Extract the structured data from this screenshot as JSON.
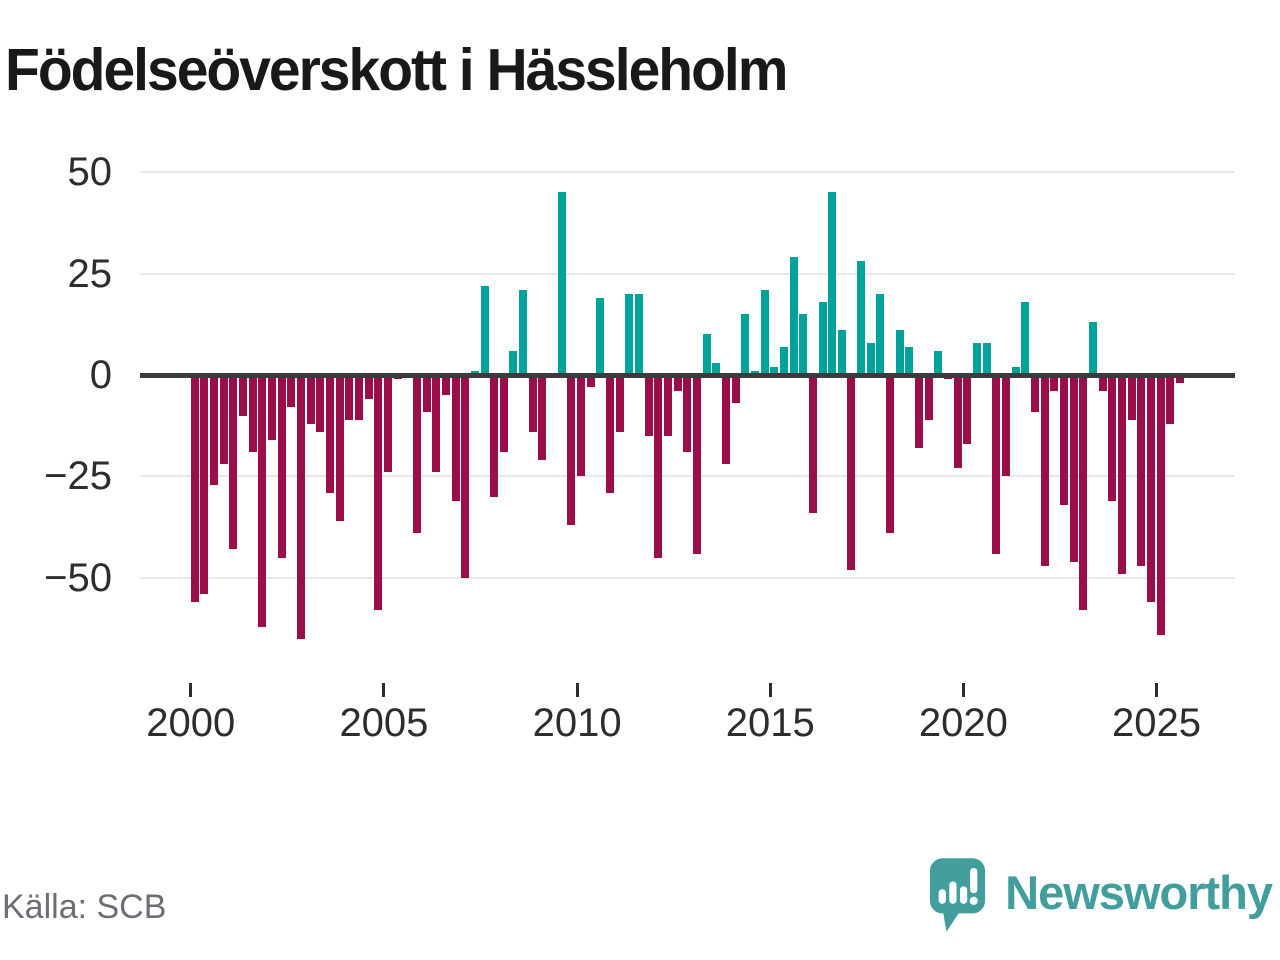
{
  "title": "Födelseöverskott i Hässleholm",
  "source": "Källa: SCB",
  "branding": {
    "wordmark": "Newsworthy",
    "icon": "newsworthy-speech-bubble-bar-chart-icon"
  },
  "colors": {
    "background": "#ffffff",
    "positive_bar": "#00a39a",
    "negative_bar": "#9b0e4a",
    "gridline": "#e8e8e8",
    "zero_line": "#3b3b3b",
    "axis_text": "#2d2d2d",
    "title_text": "#191919",
    "source_text": "#6d6d75",
    "brand_teal": "#419e9c"
  },
  "chart_data": {
    "type": "bar",
    "title": "Födelseöverskott i Hässleholm",
    "xlabel": "",
    "ylabel": "",
    "x_frequency": "quarterly",
    "x_start": "2000Q1",
    "x_end": "2025Q3",
    "grid": "horizontal",
    "legend": "none",
    "ylim": [
      -70,
      55
    ],
    "yticks": [
      {
        "value": 50,
        "label": "50"
      },
      {
        "value": 25,
        "label": "25"
      },
      {
        "value": 0,
        "label": "0"
      },
      {
        "value": -25,
        "label": "−25"
      },
      {
        "value": -50,
        "label": "−50"
      }
    ],
    "xticks": [
      {
        "year": 2000,
        "label": "2000"
      },
      {
        "year": 2005,
        "label": "2005"
      },
      {
        "year": 2010,
        "label": "2010"
      },
      {
        "year": 2015,
        "label": "2015"
      },
      {
        "year": 2020,
        "label": "2020"
      },
      {
        "year": 2025,
        "label": "2025"
      }
    ],
    "categories": [
      "2000Q1",
      "2000Q2",
      "2000Q3",
      "2000Q4",
      "2001Q1",
      "2001Q2",
      "2001Q3",
      "2001Q4",
      "2002Q1",
      "2002Q2",
      "2002Q3",
      "2002Q4",
      "2003Q1",
      "2003Q2",
      "2003Q3",
      "2003Q4",
      "2004Q1",
      "2004Q2",
      "2004Q3",
      "2004Q4",
      "2005Q1",
      "2005Q2",
      "2005Q3",
      "2005Q4",
      "2006Q1",
      "2006Q2",
      "2006Q3",
      "2006Q4",
      "2007Q1",
      "2007Q2",
      "2007Q3",
      "2007Q4",
      "2008Q1",
      "2008Q2",
      "2008Q3",
      "2008Q4",
      "2009Q1",
      "2009Q2",
      "2009Q3",
      "2009Q4",
      "2010Q1",
      "2010Q2",
      "2010Q3",
      "2010Q4",
      "2011Q1",
      "2011Q2",
      "2011Q3",
      "2011Q4",
      "2012Q1",
      "2012Q2",
      "2012Q3",
      "2012Q4",
      "2013Q1",
      "2013Q2",
      "2013Q3",
      "2013Q4",
      "2014Q1",
      "2014Q2",
      "2014Q3",
      "2014Q4",
      "2015Q1",
      "2015Q2",
      "2015Q3",
      "2015Q4",
      "2016Q1",
      "2016Q2",
      "2016Q3",
      "2016Q4",
      "2017Q1",
      "2017Q2",
      "2017Q3",
      "2017Q4",
      "2018Q1",
      "2018Q2",
      "2018Q3",
      "2018Q4",
      "2019Q1",
      "2019Q2",
      "2019Q3",
      "2019Q4",
      "2020Q1",
      "2020Q2",
      "2020Q3",
      "2020Q4",
      "2021Q1",
      "2021Q2",
      "2021Q3",
      "2021Q4",
      "2022Q1",
      "2022Q2",
      "2022Q3",
      "2022Q4",
      "2023Q1",
      "2023Q2",
      "2023Q3",
      "2023Q4",
      "2024Q1",
      "2024Q2",
      "2024Q3",
      "2024Q4",
      "2025Q1",
      "2025Q2",
      "2025Q3"
    ],
    "values": [
      -56,
      -54,
      -27,
      -22,
      -43,
      -10,
      -19,
      -62,
      -16,
      -45,
      -8,
      -65,
      -12,
      -14,
      -29,
      -36,
      -11,
      -11,
      -6,
      -58,
      -24,
      -1,
      0,
      -39,
      -9,
      -24,
      -5,
      -31,
      -50,
      1,
      22,
      -30,
      -19,
      6,
      21,
      -14,
      -21,
      0,
      45,
      -37,
      -25,
      -3,
      19,
      -29,
      -14,
      20,
      20,
      -15,
      -45,
      -15,
      -4,
      -19,
      -44,
      10,
      3,
      -22,
      -7,
      15,
      1,
      21,
      2,
      7,
      29,
      15,
      -34,
      18,
      45,
      11,
      -48,
      28,
      8,
      20,
      -39,
      11,
      7,
      -18,
      -11,
      6,
      -1,
      -23,
      -17,
      8,
      8,
      -44,
      -25,
      2,
      18,
      -9,
      -47,
      -4,
      -32,
      -46,
      -58,
      13,
      -4,
      -31,
      -49,
      -11,
      -47,
      -56,
      -64,
      -12,
      -2
    ]
  }
}
